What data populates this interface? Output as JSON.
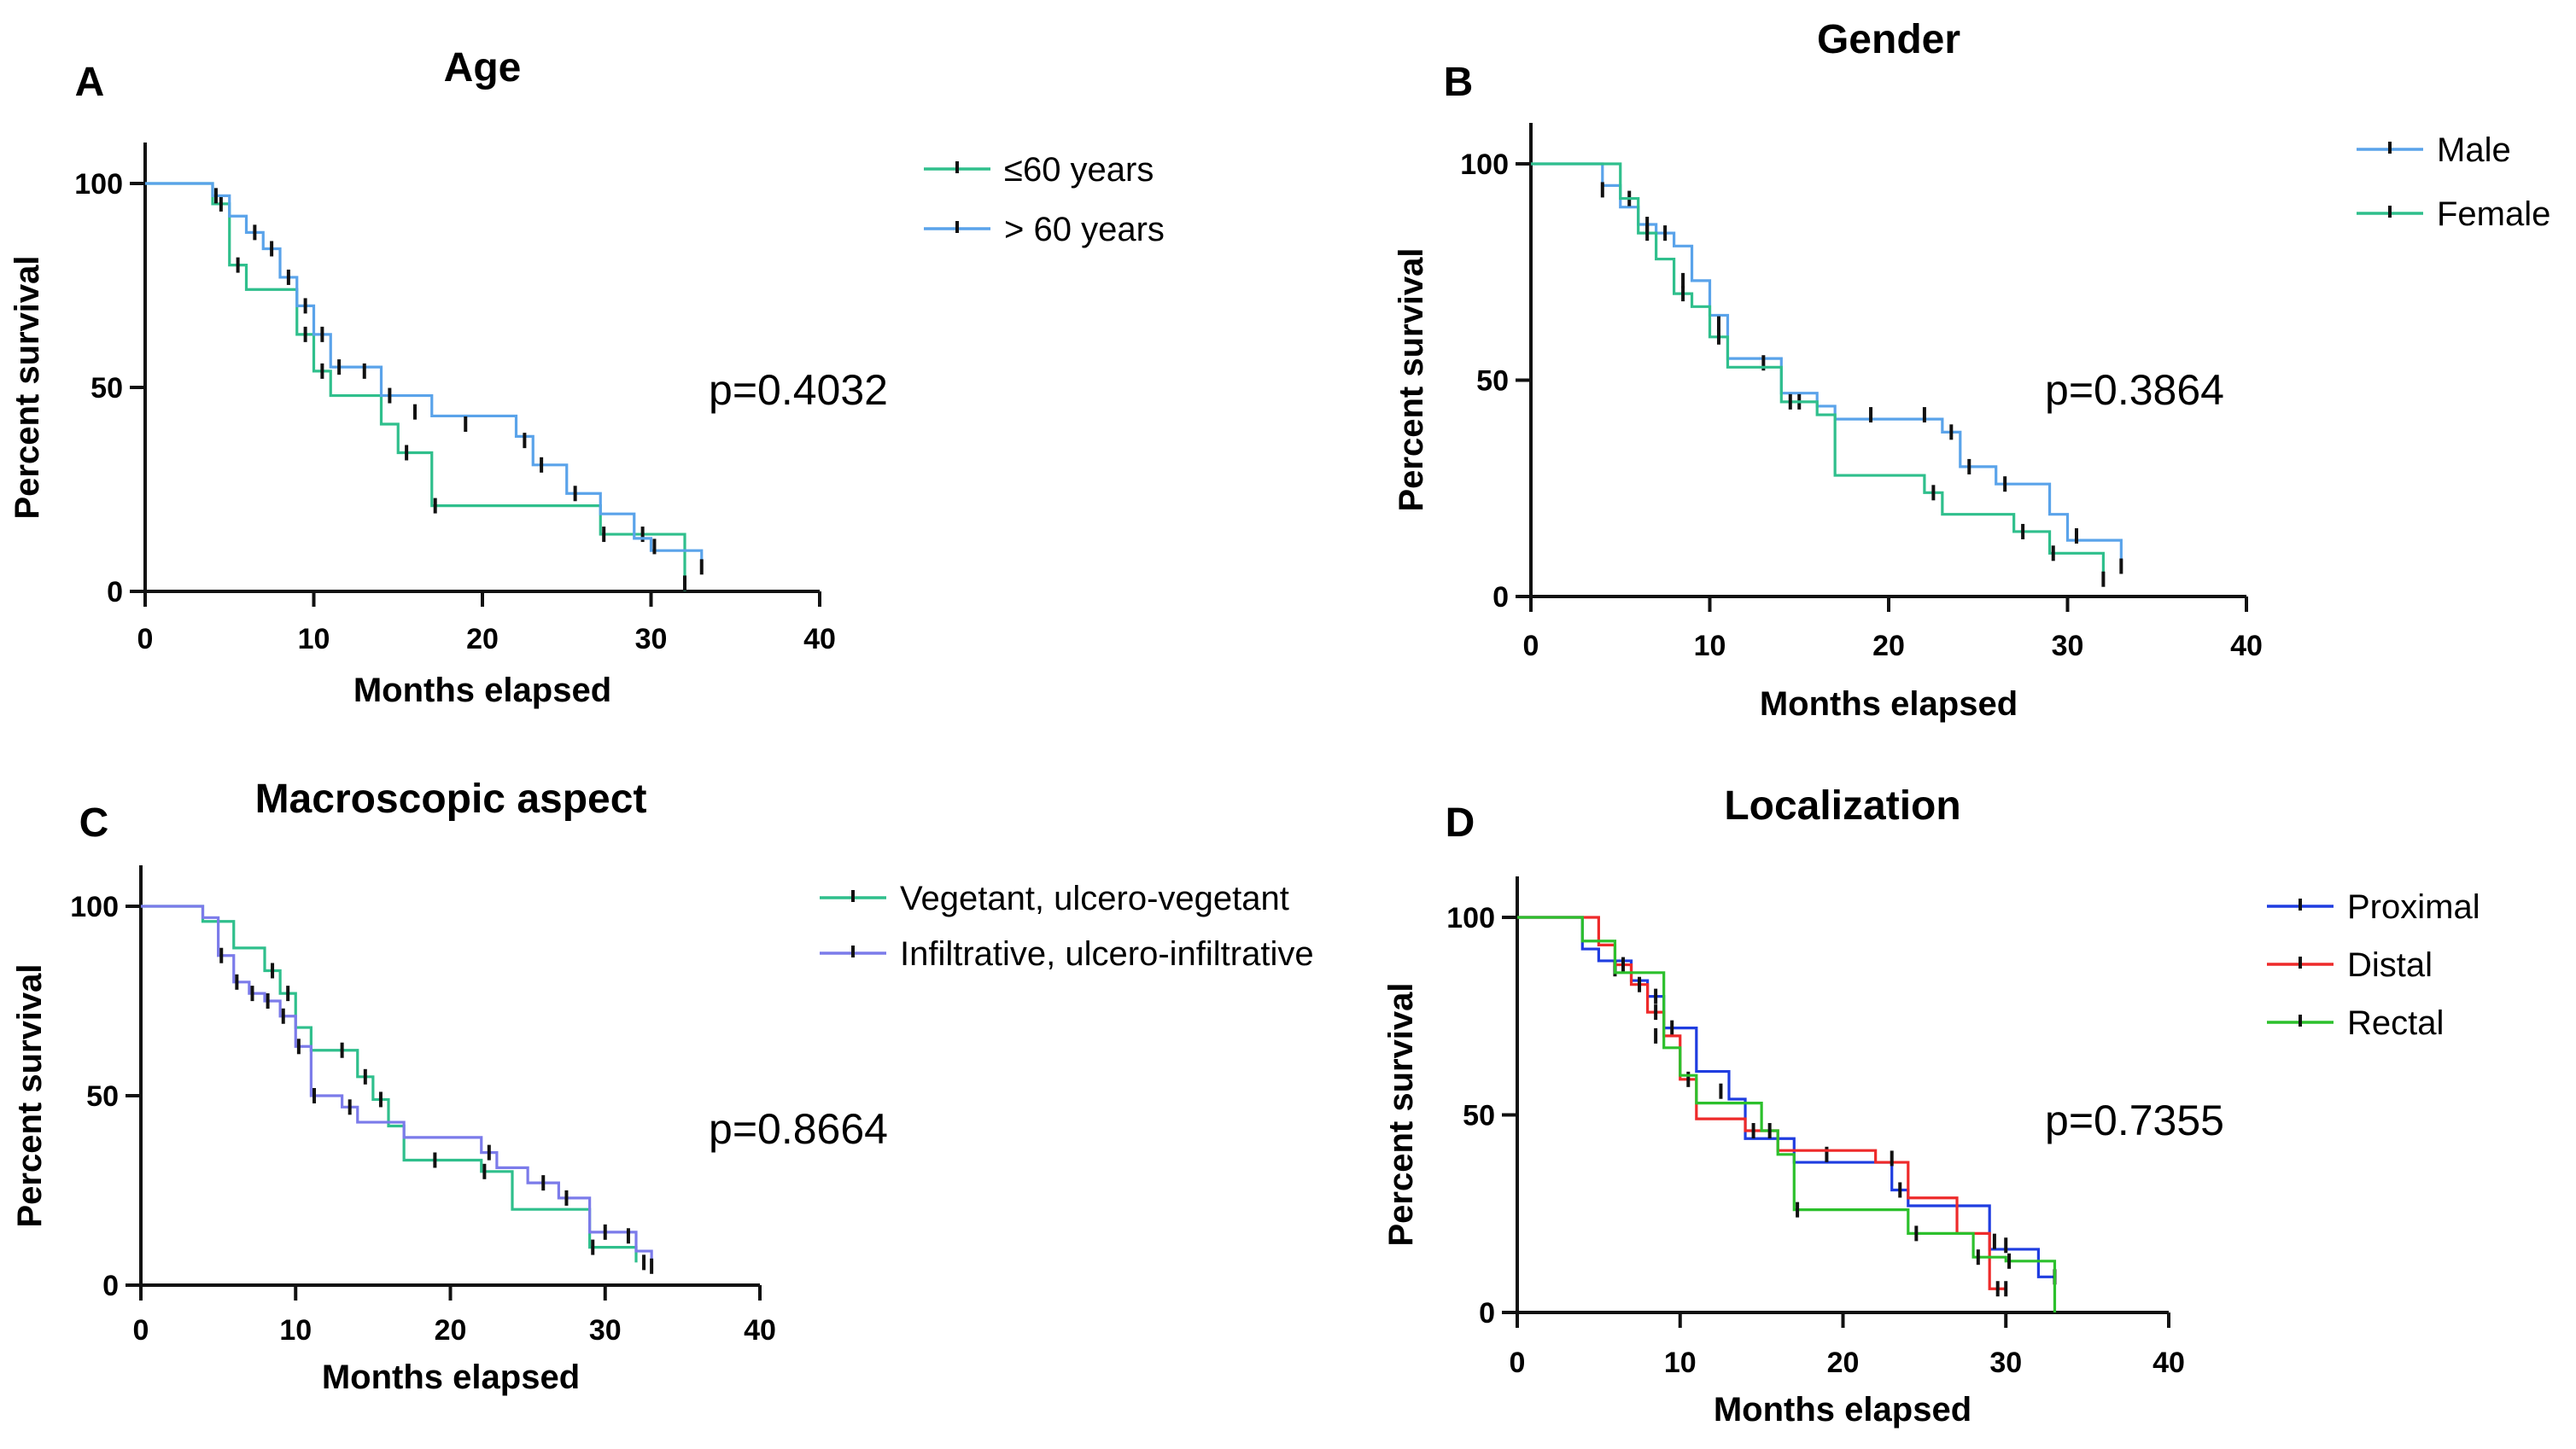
{
  "chart_data": [
    {
      "panel": "A",
      "type": "line",
      "title": "Age",
      "xlabel": "Months elapsed",
      "ylabel": "Percent survival",
      "xlim": [
        0,
        40
      ],
      "ylim": [
        0,
        100
      ],
      "xticks": [
        0,
        10,
        20,
        30,
        40
      ],
      "yticks": [
        0,
        50,
        100
      ],
      "annotation": "p=0.4032",
      "legend_position": "top-right",
      "series": [
        {
          "name": "≤60 years",
          "color": "#2fbf8c",
          "steps": [
            [
              0,
              100
            ],
            [
              4,
              95
            ],
            [
              5,
              80
            ],
            [
              6,
              74
            ],
            [
              9,
              63
            ],
            [
              10,
              54
            ],
            [
              11,
              48
            ],
            [
              14,
              41
            ],
            [
              15,
              34
            ],
            [
              17,
              21
            ],
            [
              27,
              14
            ],
            [
              32,
              0
            ]
          ],
          "censored": [
            [
              4.5,
              95
            ],
            [
              5.5,
              80
            ],
            [
              9.5,
              63
            ],
            [
              10.5,
              54
            ],
            [
              15.5,
              34
            ],
            [
              17.2,
              21
            ],
            [
              27.2,
              14
            ],
            [
              29.5,
              14
            ],
            [
              32,
              2
            ]
          ]
        },
        {
          "name": "> 60 years",
          "color": "#5aa3ea",
          "steps": [
            [
              0,
              100
            ],
            [
              4,
              97
            ],
            [
              5,
              92
            ],
            [
              6,
              88
            ],
            [
              7,
              84
            ],
            [
              8,
              77
            ],
            [
              9,
              70
            ],
            [
              10,
              63
            ],
            [
              11,
              55
            ],
            [
              14,
              48
            ],
            [
              17,
              43
            ],
            [
              22,
              38
            ],
            [
              23,
              31
            ],
            [
              25,
              24
            ],
            [
              27,
              19
            ],
            [
              29,
              13
            ],
            [
              30,
              10
            ],
            [
              33,
              6
            ]
          ],
          "censored": [
            [
              4.2,
              97
            ],
            [
              6.5,
              88
            ],
            [
              7.5,
              84
            ],
            [
              8.5,
              77
            ],
            [
              9.5,
              70
            ],
            [
              10.5,
              63
            ],
            [
              11.5,
              55
            ],
            [
              13,
              54
            ],
            [
              14.5,
              48
            ],
            [
              16,
              44
            ],
            [
              19,
              41
            ],
            [
              22.5,
              37
            ],
            [
              23.5,
              31
            ],
            [
              25.5,
              24
            ],
            [
              30.2,
              11
            ],
            [
              33,
              6
            ]
          ]
        }
      ]
    },
    {
      "panel": "B",
      "type": "line",
      "title": "Gender",
      "xlabel": "Months elapsed",
      "ylabel": "Percent survival",
      "xlim": [
        0,
        40
      ],
      "ylim": [
        0,
        100
      ],
      "xticks": [
        0,
        10,
        20,
        30,
        40
      ],
      "yticks": [
        0,
        50,
        100
      ],
      "annotation": "p=0.3864",
      "legend_position": "top-right",
      "series": [
        {
          "name": "Male",
          "color": "#5aa3ea",
          "steps": [
            [
              0,
              100
            ],
            [
              4,
              95
            ],
            [
              5,
              90
            ],
            [
              6,
              86
            ],
            [
              7,
              84
            ],
            [
              8,
              81
            ],
            [
              9,
              73
            ],
            [
              10,
              65
            ],
            [
              11,
              55
            ],
            [
              14,
              47
            ],
            [
              16,
              44
            ],
            [
              17,
              41
            ],
            [
              23,
              38
            ],
            [
              24,
              30
            ],
            [
              26,
              26
            ],
            [
              29,
              19
            ],
            [
              30,
              13
            ],
            [
              33,
              8
            ]
          ],
          "censored": [
            [
              5.5,
              92
            ],
            [
              6.5,
              86
            ],
            [
              7.5,
              84
            ],
            [
              8.5,
              73
            ],
            [
              10.5,
              63
            ],
            [
              13,
              54
            ],
            [
              15,
              45
            ],
            [
              19,
              42
            ],
            [
              22,
              42
            ],
            [
              23.5,
              38
            ],
            [
              24.5,
              30
            ],
            [
              26.5,
              26
            ],
            [
              30.5,
              14
            ],
            [
              33,
              7
            ]
          ]
        },
        {
          "name": "Female",
          "color": "#2fbf8c",
          "steps": [
            [
              0,
              100
            ],
            [
              5,
              92
            ],
            [
              6,
              84
            ],
            [
              7,
              78
            ],
            [
              8,
              70
            ],
            [
              9,
              67
            ],
            [
              10,
              60
            ],
            [
              11,
              53
            ],
            [
              14,
              45
            ],
            [
              16,
              42
            ],
            [
              17,
              28
            ],
            [
              22,
              24
            ],
            [
              23,
              19
            ],
            [
              27,
              15
            ],
            [
              29,
              10
            ],
            [
              32,
              5
            ]
          ],
          "censored": [
            [
              4,
              94
            ],
            [
              6.5,
              84
            ],
            [
              8.5,
              70
            ],
            [
              10.5,
              60
            ],
            [
              14.5,
              45
            ],
            [
              22.5,
              24
            ],
            [
              27.5,
              15
            ],
            [
              29.2,
              10
            ],
            [
              32,
              4
            ]
          ]
        }
      ]
    },
    {
      "panel": "C",
      "type": "line",
      "title": "Macroscopic aspect",
      "xlabel": "Months elapsed",
      "ylabel": "Percent survival",
      "xlim": [
        0,
        40
      ],
      "ylim": [
        0,
        100
      ],
      "xticks": [
        0,
        10,
        20,
        30,
        40
      ],
      "yticks": [
        0,
        50,
        100
      ],
      "annotation": "p=0.8664",
      "legend_position": "top-right",
      "series": [
        {
          "name": "Vegetant, ulcero-vegetant",
          "color": "#2fbf8c",
          "steps": [
            [
              0,
              100
            ],
            [
              4,
              96
            ],
            [
              6,
              89
            ],
            [
              8,
              83
            ],
            [
              9,
              77
            ],
            [
              10,
              68
            ],
            [
              11,
              62
            ],
            [
              14,
              55
            ],
            [
              15,
              49
            ],
            [
              16,
              42
            ],
            [
              17,
              33
            ],
            [
              22,
              30
            ],
            [
              24,
              20
            ],
            [
              29,
              10
            ],
            [
              32,
              6
            ]
          ],
          "censored": [
            [
              8.5,
              83
            ],
            [
              9.5,
              77
            ],
            [
              13,
              62
            ],
            [
              14.5,
              55
            ],
            [
              15.5,
              49
            ],
            [
              19,
              33
            ],
            [
              22.2,
              30
            ],
            [
              29.2,
              10
            ],
            [
              32.5,
              6
            ]
          ]
        },
        {
          "name": "Infiltrative, ulcero-infiltrative",
          "color": "#7b7bea",
          "steps": [
            [
              0,
              100
            ],
            [
              4,
              97
            ],
            [
              5,
              87
            ],
            [
              6,
              80
            ],
            [
              7,
              77
            ],
            [
              8,
              75
            ],
            [
              9,
              71
            ],
            [
              10,
              63
            ],
            [
              11,
              50
            ],
            [
              13,
              47
            ],
            [
              14,
              43
            ],
            [
              17,
              39
            ],
            [
              22,
              35
            ],
            [
              23,
              31
            ],
            [
              25,
              27
            ],
            [
              27,
              23
            ],
            [
              29,
              14
            ],
            [
              32,
              9
            ],
            [
              33,
              6
            ]
          ],
          "censored": [
            [
              5.2,
              87
            ],
            [
              6.2,
              80
            ],
            [
              7.2,
              77
            ],
            [
              8.2,
              75
            ],
            [
              9.2,
              71
            ],
            [
              10.2,
              63
            ],
            [
              11.2,
              50
            ],
            [
              13.5,
              47
            ],
            [
              22.5,
              35
            ],
            [
              26,
              27
            ],
            [
              27.5,
              23
            ],
            [
              30,
              14
            ],
            [
              31.5,
              13
            ],
            [
              33,
              5
            ]
          ]
        }
      ]
    },
    {
      "panel": "D",
      "type": "line",
      "title": "Localization",
      "xlabel": "Months elapsed",
      "ylabel": "Percent survival",
      "xlim": [
        0,
        40
      ],
      "ylim": [
        0,
        100
      ],
      "xticks": [
        0,
        10,
        20,
        30,
        40
      ],
      "yticks": [
        0,
        50,
        100
      ],
      "annotation": "p=0.7355",
      "legend_position": "top-right",
      "series": [
        {
          "name": "Proximal",
          "color": "#1f3de0",
          "steps": [
            [
              0,
              100
            ],
            [
              4,
              92
            ],
            [
              5,
              89
            ],
            [
              7,
              84
            ],
            [
              8,
              80
            ],
            [
              9,
              72
            ],
            [
              11,
              61
            ],
            [
              13,
              54
            ],
            [
              14,
              44
            ],
            [
              17,
              38
            ],
            [
              23,
              31
            ],
            [
              24,
              27
            ],
            [
              29,
              16
            ],
            [
              32,
              9
            ],
            [
              33,
              10
            ]
          ],
          "censored": [
            [
              6,
              87
            ],
            [
              8.5,
              80
            ],
            [
              9.5,
              72
            ],
            [
              12.5,
              56
            ],
            [
              19,
              40
            ],
            [
              23.5,
              31
            ],
            [
              29.3,
              18
            ],
            [
              30,
              17
            ],
            [
              33,
              9
            ]
          ]
        },
        {
          "name": "Distal",
          "color": "#ee2a2a",
          "steps": [
            [
              0,
              100
            ],
            [
              5,
              93
            ],
            [
              6,
              88
            ],
            [
              7,
              83
            ],
            [
              8,
              76
            ],
            [
              9,
              70
            ],
            [
              10,
              59
            ],
            [
              11,
              49
            ],
            [
              14,
              46
            ],
            [
              16,
              41
            ],
            [
              22,
              38
            ],
            [
              24,
              29
            ],
            [
              27,
              20
            ],
            [
              29,
              6
            ],
            [
              30,
              6
            ]
          ],
          "censored": [
            [
              6.5,
              88
            ],
            [
              7.5,
              83
            ],
            [
              8.5,
              76
            ],
            [
              10.5,
              59
            ],
            [
              14.5,
              46
            ],
            [
              23,
              39
            ],
            [
              29.5,
              6
            ],
            [
              30,
              6
            ]
          ]
        },
        {
          "name": "Rectal",
          "color": "#2cc02c",
          "steps": [
            [
              0,
              100
            ],
            [
              4,
              94
            ],
            [
              6,
              86
            ],
            [
              9,
              67
            ],
            [
              10,
              60
            ],
            [
              11,
              53
            ],
            [
              15,
              46
            ],
            [
              16,
              40
            ],
            [
              17,
              26
            ],
            [
              23,
              26
            ],
            [
              24,
              20
            ],
            [
              28,
              14
            ],
            [
              30,
              13
            ],
            [
              33,
              0
            ]
          ],
          "censored": [
            [
              8.5,
              70
            ],
            [
              15.5,
              46
            ],
            [
              17.2,
              26
            ],
            [
              24.5,
              20
            ],
            [
              28.3,
              14
            ],
            [
              30.2,
              13
            ]
          ]
        }
      ]
    }
  ]
}
